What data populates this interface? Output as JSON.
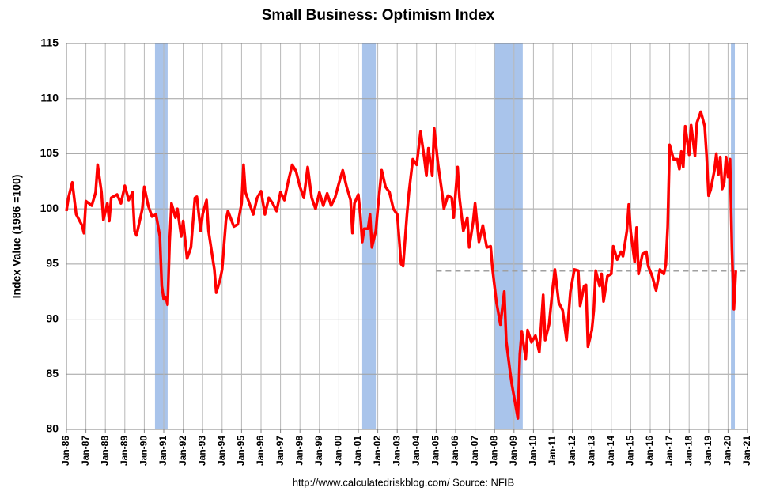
{
  "chart_data": {
    "type": "line",
    "title": "Small Business: Optimism Index",
    "y_label": "Index Value (1986 =100)",
    "source": "http://www.calculatedriskblog.com/  Source: NFIB",
    "color": "#ff0000",
    "band_color": "#a9c4eb",
    "reference_color": "#a0a0a0",
    "grid": true,
    "xlim": [
      1986,
      2021
    ],
    "ylim": [
      80,
      115
    ],
    "yticks": [
      80,
      85,
      90,
      95,
      100,
      105,
      110,
      115
    ],
    "xticks": [
      {
        "value": 1986,
        "label": "Jan-86"
      },
      {
        "value": 1987,
        "label": "Jan-87"
      },
      {
        "value": 1988,
        "label": "Jan-88"
      },
      {
        "value": 1989,
        "label": "Jan-89"
      },
      {
        "value": 1990,
        "label": "Jan-90"
      },
      {
        "value": 1991,
        "label": "Jan-91"
      },
      {
        "value": 1992,
        "label": "Jan-92"
      },
      {
        "value": 1993,
        "label": "Jan-93"
      },
      {
        "value": 1994,
        "label": "Jan-94"
      },
      {
        "value": 1995,
        "label": "Jan-95"
      },
      {
        "value": 1996,
        "label": "Jan-96"
      },
      {
        "value": 1997,
        "label": "Jan-97"
      },
      {
        "value": 1998,
        "label": "Jan-98"
      },
      {
        "value": 1999,
        "label": "Jan-99"
      },
      {
        "value": 2000,
        "label": "Jan-00"
      },
      {
        "value": 2001,
        "label": "Jan-01"
      },
      {
        "value": 2002,
        "label": "Jan-02"
      },
      {
        "value": 2003,
        "label": "Jan-03"
      },
      {
        "value": 2004,
        "label": "Jan-04"
      },
      {
        "value": 2005,
        "label": "Jan-05"
      },
      {
        "value": 2006,
        "label": "Jan-06"
      },
      {
        "value": 2007,
        "label": "Jan-07"
      },
      {
        "value": 2008,
        "label": "Jan-08"
      },
      {
        "value": 2009,
        "label": "Jan-09"
      },
      {
        "value": 2010,
        "label": "Jan-10"
      },
      {
        "value": 2011,
        "label": "Jan-11"
      },
      {
        "value": 2012,
        "label": "Jan-12"
      },
      {
        "value": 2013,
        "label": "Jan-13"
      },
      {
        "value": 2014,
        "label": "Jan-14"
      },
      {
        "value": 2015,
        "label": "Jan-15"
      },
      {
        "value": 2016,
        "label": "Jan-16"
      },
      {
        "value": 2017,
        "label": "Jan-17"
      },
      {
        "value": 2018,
        "label": "Jan-18"
      },
      {
        "value": 2019,
        "label": "Jan-19"
      },
      {
        "value": 2020,
        "label": "Jan-20"
      },
      {
        "value": 2021,
        "label": "Jan-21"
      }
    ],
    "shaded_ranges": [
      [
        1990.55,
        1991.2
      ],
      [
        2001.2,
        2001.9
      ],
      [
        2007.95,
        2009.45
      ],
      [
        2020.15,
        2020.35
      ]
    ],
    "reference_line": {
      "value": 94.4,
      "x_start": 2005.0
    },
    "x": [
      1986.0,
      1986.1,
      1986.3,
      1986.5,
      1986.8,
      1986.9,
      1987.0,
      1987.3,
      1987.5,
      1987.6,
      1987.8,
      1987.9,
      1988.1,
      1988.2,
      1988.3,
      1988.6,
      1988.8,
      1989.0,
      1989.2,
      1989.4,
      1989.5,
      1989.6,
      1989.9,
      1990.0,
      1990.2,
      1990.4,
      1990.6,
      1990.8,
      1990.9,
      1991.0,
      1991.1,
      1991.2,
      1991.3,
      1991.4,
      1991.6,
      1991.7,
      1991.9,
      1992.0,
      1992.2,
      1992.4,
      1992.6,
      1992.7,
      1992.9,
      1993.0,
      1993.2,
      1993.3,
      1993.6,
      1993.7,
      1993.9,
      1994.0,
      1994.2,
      1994.3,
      1994.6,
      1994.8,
      1995.0,
      1995.1,
      1995.2,
      1995.4,
      1995.6,
      1995.8,
      1996.0,
      1996.2,
      1996.4,
      1996.6,
      1996.8,
      1997.0,
      1997.2,
      1997.4,
      1997.6,
      1997.8,
      1998.0,
      1998.2,
      1998.4,
      1998.6,
      1998.8,
      1999.0,
      1999.2,
      1999.4,
      1999.6,
      1999.8,
      2000.0,
      2000.2,
      2000.4,
      2000.6,
      2000.7,
      2000.8,
      2001.0,
      2001.1,
      2001.2,
      2001.3,
      2001.5,
      2001.6,
      2001.7,
      2001.9,
      2002.0,
      2002.2,
      2002.4,
      2002.6,
      2002.8,
      2003.0,
      2003.2,
      2003.3,
      2003.5,
      2003.6,
      2003.8,
      2004.0,
      2004.2,
      2004.4,
      2004.5,
      2004.6,
      2004.8,
      2004.9,
      2005.1,
      2005.3,
      2005.4,
      2005.6,
      2005.8,
      2005.9,
      2006.1,
      2006.2,
      2006.4,
      2006.6,
      2006.7,
      2006.9,
      2007.0,
      2007.2,
      2007.4,
      2007.6,
      2007.8,
      2007.9,
      2008.1,
      2008.3,
      2008.5,
      2008.6,
      2008.8,
      2008.9,
      2009.2,
      2009.3,
      2009.4,
      2009.6,
      2009.7,
      2009.9,
      2010.1,
      2010.3,
      2010.5,
      2010.6,
      2010.8,
      2011.0,
      2011.1,
      2011.3,
      2011.5,
      2011.7,
      2011.9,
      2012.1,
      2012.3,
      2012.4,
      2012.6,
      2012.7,
      2012.8,
      2013.0,
      2013.1,
      2013.2,
      2013.4,
      2013.5,
      2013.6,
      2013.8,
      2014.0,
      2014.1,
      2014.3,
      2014.5,
      2014.6,
      2014.8,
      2014.9,
      2015.0,
      2015.2,
      2015.3,
      2015.4,
      2015.6,
      2015.8,
      2015.9,
      2016.1,
      2016.3,
      2016.5,
      2016.7,
      2016.8,
      2016.9,
      2017.0,
      2017.2,
      2017.4,
      2017.5,
      2017.6,
      2017.7,
      2017.8,
      2018.0,
      2018.1,
      2018.3,
      2018.4,
      2018.6,
      2018.8,
      2018.9,
      2019.0,
      2019.1,
      2019.3,
      2019.4,
      2019.5,
      2019.6,
      2019.7,
      2019.8,
      2019.9,
      2020.0,
      2020.1,
      2020.2,
      2020.3,
      2020.4
    ],
    "values": [
      99.8,
      101,
      102.4,
      99.5,
      98.5,
      97.8,
      100.7,
      100.3,
      101.5,
      104,
      101.5,
      99,
      100.5,
      98.9,
      101,
      101.3,
      100.5,
      102.1,
      100.8,
      101.5,
      98,
      97.6,
      100,
      102,
      100.3,
      99.3,
      99.5,
      97.5,
      93,
      91.8,
      92,
      91.3,
      97,
      100.5,
      99.2,
      100,
      97.5,
      98.9,
      95.5,
      96.5,
      101,
      101.1,
      98,
      99.5,
      100.8,
      98,
      94.5,
      92.4,
      93.6,
      94.5,
      99,
      99.8,
      98.4,
      98.6,
      100.5,
      104,
      101.5,
      100.5,
      99.5,
      101,
      101.6,
      99.5,
      101,
      100.5,
      99.8,
      101.5,
      100.8,
      102.5,
      104,
      103.4,
      102,
      101,
      103.8,
      101,
      100,
      101.5,
      100.3,
      101.4,
      100.3,
      101,
      102.3,
      103.5,
      102,
      100.8,
      97.8,
      100.5,
      101.3,
      99.5,
      97,
      98.2,
      98.2,
      99.5,
      96.5,
      98,
      100,
      103.5,
      102,
      101.5,
      100,
      99.5,
      95,
      94.8,
      99.5,
      101.5,
      104.5,
      104,
      107,
      104.5,
      103,
      105.5,
      103,
      107.3,
      104,
      101.5,
      100,
      101.2,
      101,
      99.2,
      103.8,
      101,
      98,
      99.2,
      96.5,
      98.8,
      100.5,
      97,
      98.5,
      96.5,
      96.6,
      94.5,
      91.5,
      89.5,
      92.5,
      88,
      85.2,
      84,
      81,
      86.8,
      88.9,
      86.4,
      89,
      87.9,
      88.5,
      87,
      92.2,
      88.1,
      89.5,
      93,
      94.5,
      91.5,
      90.8,
      88.1,
      92.5,
      94.5,
      94.4,
      91.2,
      93,
      93.1,
      87.5,
      89,
      90.8,
      94.4,
      93,
      94.1,
      91.6,
      93.9,
      94.1,
      96.6,
      95.4,
      96.1,
      95.7,
      98,
      100.4,
      97.9,
      95.2,
      98.3,
      94.1,
      95.9,
      96.1,
      94.8,
      93.9,
      92.6,
      94.5,
      94.1,
      94.9,
      98.4,
      105.8,
      104.5,
      104.5,
      103.6,
      105.2,
      103.8,
      107.5,
      104.9,
      107.6,
      104.8,
      107.8,
      108.8,
      107.5,
      104.8,
      101.2,
      101.7,
      103.5,
      105,
      103.1,
      104.7,
      101.8,
      102.4,
      104.7,
      102.9,
      104.5,
      96.4,
      90.9,
      94.4
    ]
  }
}
